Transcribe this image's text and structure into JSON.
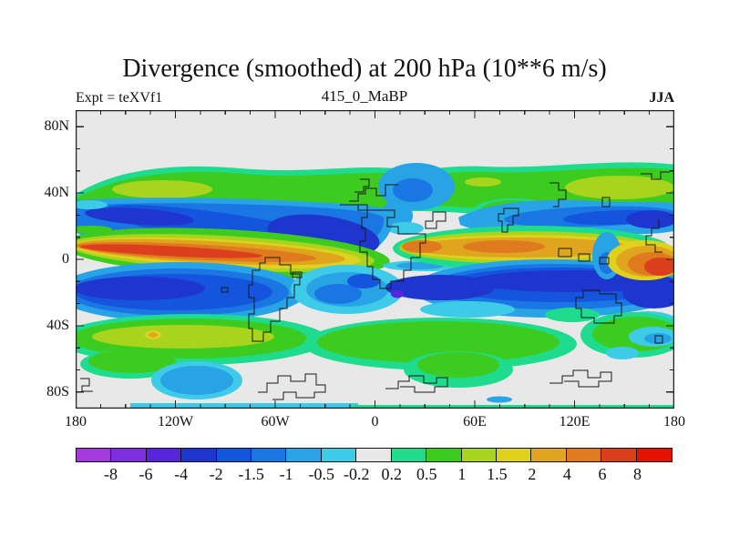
{
  "header": {
    "title": "Divergence (smoothed) at 200 hPa (10**6 m/s)",
    "subtitle": "415_0_MaBP",
    "expt": "Expt = teXVf1",
    "season": "JJA"
  },
  "axes": {
    "lat_labels": [
      {
        "text": "80N",
        "lat": 80
      },
      {
        "text": "40N",
        "lat": 40
      },
      {
        "text": "0",
        "lat": 0
      },
      {
        "text": "40S",
        "lat": -40
      },
      {
        "text": "80S",
        "lat": -80
      }
    ],
    "lon_labels": [
      {
        "text": "180",
        "lon": -180
      },
      {
        "text": "120W",
        "lon": -120
      },
      {
        "text": "60W",
        "lon": -60
      },
      {
        "text": "0",
        "lon": 0
      },
      {
        "text": "60E",
        "lon": 60
      },
      {
        "text": "120E",
        "lon": 120
      },
      {
        "text": "180",
        "lon": 180
      }
    ]
  },
  "colorbar": {
    "boundary_labels": [
      "-8",
      "-6",
      "-4",
      "-2",
      "-1.5",
      "-1",
      "-0.5",
      "-0.2",
      "0.2",
      "0.5",
      "1",
      "1.5",
      "2",
      "4",
      "6",
      "8"
    ],
    "colors": [
      "#a33add",
      "#7d2ee0",
      "#5526dd",
      "#1e36ce",
      "#1554dc",
      "#1a76e2",
      "#28a3e5",
      "#3dcbe8",
      "#e8e8e8",
      "#1fdb8d",
      "#3ecb1f",
      "#a8d41e",
      "#e0d11e",
      "#dfa51e",
      "#df7a1e",
      "#dc3f1e",
      "#e51200"
    ]
  },
  "chart_data": {
    "type": "heatmap",
    "title": "Divergence (smoothed) at 200 hPa (10**6 m/s)",
    "subtitle": "415_0_MaBP",
    "experiment": "teXVf1",
    "season": "JJA",
    "units": "10**6 m/s",
    "projection": "cylindrical lat-lon world map with model coastlines",
    "xlim": [
      -180,
      180
    ],
    "ylim": [
      -90,
      90
    ],
    "x_ticks": [
      "180",
      "120W",
      "60W",
      "0",
      "60E",
      "120E",
      "180"
    ],
    "y_ticks": [
      "80N",
      "40N",
      "0",
      "40S",
      "80S"
    ],
    "contour_levels": [
      -8,
      -6,
      -4,
      -2,
      -1.5,
      -1,
      -0.5,
      -0.2,
      0.2,
      0.5,
      1,
      1.5,
      2,
      4,
      6,
      8
    ],
    "palette": [
      "#a33add",
      "#7d2ee0",
      "#5526dd",
      "#1e36ce",
      "#1554dc",
      "#1a76e2",
      "#28a3e5",
      "#3dcbe8",
      "#e8e8e8",
      "#1fdb8d",
      "#3ecb1f",
      "#a8d41e",
      "#e0d11e",
      "#dfa51e",
      "#df7a1e",
      "#dc3f1e",
      "#e51200"
    ],
    "features": [
      {
        "region": "polar caps north of 55N and south of 55S",
        "value_range": "-0.2 to 0.2"
      },
      {
        "region": "NH midlatitude band 35N-55N, all longitudes",
        "value_range": "0.2 to 1.5",
        "note": "yellow-green maxima near 45N/140W and 40N/130E-180E"
      },
      {
        "region": "Europe/Mediterranean 30N-50N, 10E-40E",
        "value_range": "-0.5 to -1.5"
      },
      {
        "region": "NH subtropical band 5N-30N, 180W-60W",
        "value_range": "-0.5 to -4",
        "note": "dark blue cores near 15N/170W and 15N/40W"
      },
      {
        "region": "NH subtropics 20N-30N, 60E-180E",
        "value_range": "-1 to -4",
        "note": "dark core near 25N/165E"
      },
      {
        "region": "tropical Pacific band 0-12S, 180W-90W",
        "value_range": "2 to 8",
        "note": "red-orange core 4-8 near 8S/140W"
      },
      {
        "region": "monsoon outflow band 2N-15N, 10E-120E",
        "value_range": "2 to 6",
        "note": "dark orange cores near 70E and 20E"
      },
      {
        "region": "west Pacific 5S, 150E-180E",
        "value_range": "4 to 8",
        "note": "red core at the right edge"
      },
      {
        "region": "SH subtropical band 10S-30S, all longitudes",
        "value_range": "-1 to -4",
        "note": "small purple spot < -6 near 22S/60E"
      },
      {
        "region": "SH midlatitude band 30S-48S",
        "value_range": "0.2 to 1.5",
        "note": "yellow-green core near 38S/130W with small +2 to +4 spot"
      },
      {
        "region": "Southern Ocean 55S-65S, 85W-35W",
        "value_range": "-0.5 to -1"
      }
    ]
  }
}
